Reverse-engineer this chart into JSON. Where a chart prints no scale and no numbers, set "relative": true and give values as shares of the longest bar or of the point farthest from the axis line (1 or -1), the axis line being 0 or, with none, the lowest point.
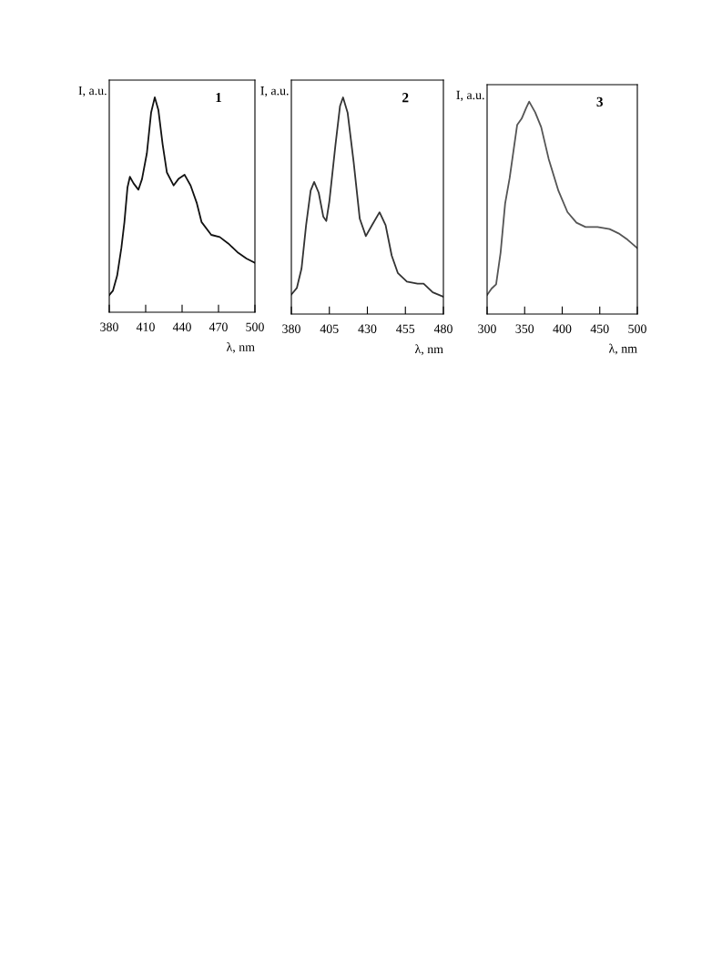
{
  "chart_data": [
    {
      "type": "line",
      "relative": true,
      "ylabel": "I, a.u.",
      "xlabel": "λ, nm",
      "annotations": [
        "1"
      ],
      "xlim": [
        380,
        500
      ],
      "xticks": [
        380,
        410,
        440,
        470,
        500
      ],
      "grid": false,
      "legend": false,
      "tick_labels": "x",
      "series": [
        {
          "color": "#111111",
          "x": [
            380,
            383,
            386.5,
            390,
            392.5,
            395,
            397,
            400,
            404,
            407,
            411,
            414.5,
            417.5,
            420.5,
            424,
            427.5,
            433,
            437,
            442,
            447,
            452,
            456,
            464,
            471,
            478,
            485.5,
            493,
            500
          ],
          "values": [
            0.08,
            0.1,
            0.17,
            0.3,
            0.42,
            0.58,
            0.63,
            0.6,
            0.57,
            0.62,
            0.74,
            0.93,
            1.0,
            0.94,
            0.78,
            0.65,
            0.59,
            0.62,
            0.64,
            0.59,
            0.51,
            0.42,
            0.36,
            0.35,
            0.32,
            0.28,
            0.25,
            0.23
          ]
        }
      ]
    },
    {
      "type": "line",
      "relative": true,
      "ylabel": "I, a.u.",
      "xlabel": "λ, nm",
      "annotations": [
        "2"
      ],
      "xlim": [
        380,
        480
      ],
      "xticks": [
        380,
        405,
        430,
        455,
        480
      ],
      "grid": false,
      "legend": false,
      "tick_labels": "x",
      "series": [
        {
          "color": "#333333",
          "x": [
            380,
            383.6,
            386.7,
            389.7,
            392.7,
            395,
            398,
            401,
            403,
            405,
            409,
            412,
            414,
            417,
            421,
            425,
            429,
            433,
            438,
            442,
            446,
            450,
            456,
            463,
            467,
            473,
            480
          ],
          "values": [
            0.09,
            0.12,
            0.21,
            0.41,
            0.57,
            0.61,
            0.56,
            0.45,
            0.43,
            0.52,
            0.78,
            0.96,
            1.0,
            0.93,
            0.7,
            0.44,
            0.36,
            0.41,
            0.47,
            0.41,
            0.27,
            0.19,
            0.15,
            0.14,
            0.14,
            0.1,
            0.08
          ]
        }
      ]
    },
    {
      "type": "line",
      "relative": true,
      "ylabel": "I, a.u.",
      "xlabel": "λ, nm",
      "annotations": [
        "3"
      ],
      "xlim": [
        300,
        500
      ],
      "xticks": [
        300,
        350,
        400,
        450,
        500
      ],
      "grid": false,
      "legend": false,
      "tick_labels": "x",
      "series": [
        {
          "color": "#555555",
          "x": [
            300,
            306,
            312,
            318,
            324,
            330,
            336,
            340,
            346,
            352,
            356,
            364,
            372,
            382,
            395,
            407,
            419,
            431,
            447,
            463,
            475,
            487,
            500
          ],
          "values": [
            0.09,
            0.12,
            0.14,
            0.29,
            0.52,
            0.64,
            0.79,
            0.89,
            0.92,
            0.97,
            1.0,
            0.95,
            0.88,
            0.73,
            0.58,
            0.48,
            0.43,
            0.41,
            0.41,
            0.4,
            0.38,
            0.35,
            0.31
          ]
        }
      ]
    }
  ]
}
